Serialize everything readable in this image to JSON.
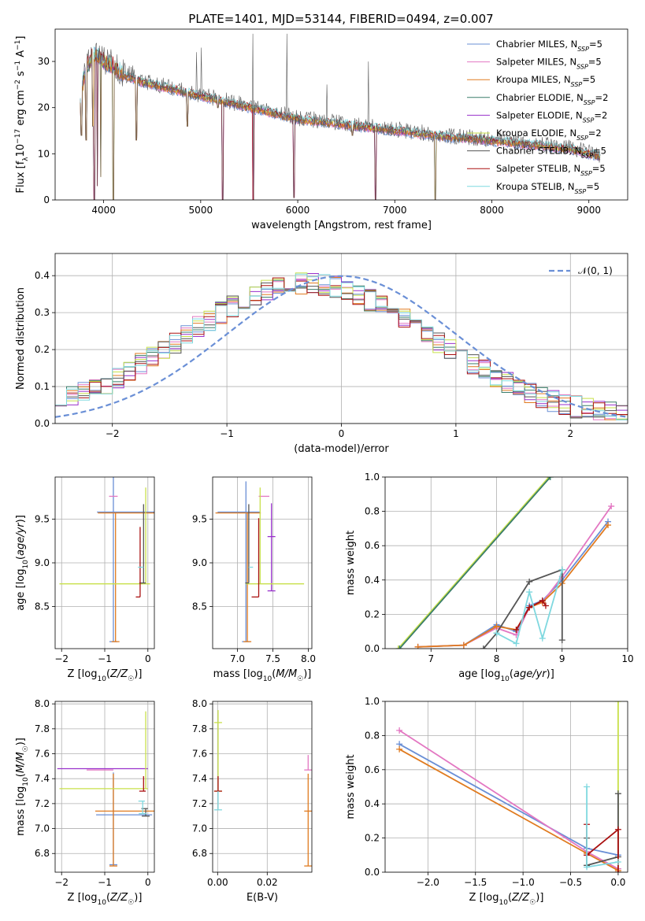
{
  "figure": {
    "title": "PLATE=1401, MJD=53144, FIBERID=0494, z=0.007"
  },
  "models": [
    {
      "name": "Chabrier MILES",
      "nssp": "5",
      "color": "#6a8fd6"
    },
    {
      "name": "Salpeter MILES",
      "nssp": "5",
      "color": "#e377c2"
    },
    {
      "name": "Kroupa MILES",
      "nssp": "5",
      "color": "#e07b20"
    },
    {
      "name": "Chabrier ELODIE",
      "nssp": "2",
      "color": "#3a7d6a"
    },
    {
      "name": "Salpeter ELODIE",
      "nssp": "2",
      "color": "#9932cc"
    },
    {
      "name": "Kroupa ELODIE",
      "nssp": "2",
      "color": "#c8e04a"
    },
    {
      "name": "Chabrier STELIB",
      "nssp": "5",
      "color": "#555555"
    },
    {
      "name": "Salpeter STELIB",
      "nssp": "5",
      "color": "#aa1111"
    },
    {
      "name": "Kroupa STELIB",
      "nssp": "5",
      "color": "#7fd8df"
    }
  ],
  "chart_data": [
    {
      "id": "spectrum",
      "type": "line",
      "xlabel": "wavelength [Angstrom, rest frame]",
      "ylabel": "Flux [f_λ 10^-17 erg cm^-2 s^-1 A^-1]",
      "xlim": [
        3500,
        9400
      ],
      "ylim": [
        0,
        37
      ],
      "xticks": [
        4000,
        5000,
        6000,
        7000,
        8000,
        9000
      ],
      "yticks": [
        0,
        10,
        20,
        30
      ],
      "grid": false,
      "legend": "top-right",
      "continuum": {
        "x": [
          3760,
          3800,
          3850,
          3900,
          3950,
          4000,
          4100,
          4200,
          4400,
          4600,
          4800,
          5000,
          5200,
          5400,
          5600,
          5800,
          6000,
          6200,
          6400,
          6600,
          6800,
          7000,
          7200,
          7400,
          7600,
          7800,
          8000,
          8200,
          8400,
          8600,
          8800,
          9000,
          9100
        ],
        "y": [
          22,
          27,
          30,
          32,
          31,
          30,
          29,
          27,
          25.5,
          24.5,
          23.5,
          22.5,
          21.5,
          20.5,
          19.5,
          18.5,
          17.5,
          17,
          16.5,
          16,
          15.5,
          15,
          14.5,
          14,
          13.5,
          13.2,
          12.8,
          12.4,
          12,
          11.5,
          11,
          10,
          9.5
        ]
      },
      "dips": [
        {
          "x": 3770,
          "y": 14
        },
        {
          "x": 3820,
          "y": 13
        },
        {
          "x": 3890,
          "y": 16
        },
        {
          "x": 3935,
          "y": 3
        },
        {
          "x": 3970,
          "y": 5
        },
        {
          "x": 3905,
          "y": 0
        },
        {
          "x": 4102,
          "y": 0
        },
        {
          "x": 4340,
          "y": 13
        },
        {
          "x": 4861,
          "y": 16
        },
        {
          "x": 5180,
          "y": 20
        },
        {
          "x": 5225,
          "y": 0
        },
        {
          "x": 5540,
          "y": 0
        },
        {
          "x": 5960,
          "y": 0.5
        },
        {
          "x": 6563,
          "y": 14
        },
        {
          "x": 6800,
          "y": 0
        },
        {
          "x": 7420,
          "y": 0
        }
      ],
      "spikes": [
        {
          "x": 4960,
          "y": 32
        },
        {
          "x": 5007,
          "y": 33
        },
        {
          "x": 5538,
          "y": 36
        },
        {
          "x": 5890,
          "y": 36
        },
        {
          "x": 6730,
          "y": 30
        },
        {
          "x": 6300,
          "y": 25
        }
      ]
    },
    {
      "id": "residuals",
      "type": "area",
      "xlabel": "(data-model)/error",
      "ylabel": "Normed distribution",
      "xlim": [
        -2.5,
        2.5
      ],
      "ylim": [
        0,
        0.46
      ],
      "xticks": [
        -2,
        -1,
        0,
        1,
        2
      ],
      "yticks": [
        0.0,
        0.1,
        0.2,
        0.3,
        0.4
      ],
      "grid": true,
      "legend": "top-right",
      "normal_label": "𝒩(0, 1)",
      "normal_color": "#6a8fd6",
      "bin_width": 0.1
    },
    {
      "id": "age-vs-Z",
      "type": "scatter",
      "xlabel": "Z [log10(Z/Z☉)]",
      "ylabel": "age  [log10(age/yr)]",
      "xlim": [
        -2.15,
        0.15
      ],
      "ylim": [
        8.02,
        9.98
      ],
      "xticks": [
        -2,
        -1,
        0
      ],
      "yticks": [
        8.5,
        9.0,
        9.5
      ],
      "grid": true,
      "errorbars": [
        {
          "model": 0,
          "x": -0.8,
          "y": 9.58,
          "xerr": [
            0.38,
            0.98
          ],
          "yerr": [
            1.48,
            0.4
          ]
        },
        {
          "model": 1,
          "x": -0.7,
          "y": 9.76,
          "xerr": [
            0.2,
            0.0
          ],
          "yerr": [
            0.0,
            0.0
          ]
        },
        {
          "model": 2,
          "x": -0.75,
          "y": 9.57,
          "xerr": [
            0.41,
            0.9
          ],
          "yerr": [
            1.47,
            0.0
          ]
        },
        {
          "model": 5,
          "x": -0.05,
          "y": 8.76,
          "xerr": [
            2.0,
            0.1
          ],
          "yerr": [
            0.0,
            1.1
          ]
        },
        {
          "model": 6,
          "x": -0.1,
          "y": 8.77,
          "xerr": [
            0.1,
            0.05
          ],
          "yerr": [
            0.0,
            0.9
          ]
        },
        {
          "model": 7,
          "x": -0.18,
          "y": 8.61,
          "xerr": [
            0.1,
            0.0
          ],
          "yerr": [
            0.0,
            0.8
          ]
        },
        {
          "model": 8,
          "x": -0.15,
          "y": 8.95,
          "xerr": [
            0.08,
            0.05
          ],
          "yerr": [
            0.0,
            0.0
          ]
        }
      ]
    },
    {
      "id": "age-vs-mass",
      "type": "scatter",
      "xlabel": "mass [log10(M/M☉)]",
      "ylabel": "",
      "xlim": [
        6.65,
        8.05
      ],
      "ylim": [
        8.02,
        9.98
      ],
      "xticks": [
        7.0,
        7.5,
        8.0
      ],
      "yticks": [
        8.5,
        9.0,
        9.5
      ],
      "grid": true,
      "errorbars": [
        {
          "model": 0,
          "x": 7.12,
          "y": 9.58,
          "xerr": [
            0.4,
            0.2
          ],
          "yerr": [
            1.48,
            0.35
          ]
        },
        {
          "model": 1,
          "x": 7.45,
          "y": 9.76,
          "xerr": [
            0.15,
            0.0
          ],
          "yerr": [
            0.0,
            0.0
          ]
        },
        {
          "model": 2,
          "x": 7.14,
          "y": 9.57,
          "xerr": [
            0.45,
            0.19
          ],
          "yerr": [
            1.47,
            0.0
          ]
        },
        {
          "model": 4,
          "x": 7.48,
          "y": 9.3,
          "xerr": [
            0.0,
            0.0
          ],
          "yerr": [
            0.62,
            0.38
          ]
        },
        {
          "model": 5,
          "x": 7.32,
          "y": 8.76,
          "xerr": [
            0.2,
            0.62
          ],
          "yerr": [
            0.0,
            1.1
          ]
        },
        {
          "model": 6,
          "x": 7.16,
          "y": 8.77,
          "xerr": [
            0.05,
            0.0
          ],
          "yerr": [
            0.0,
            0.9
          ]
        },
        {
          "model": 7,
          "x": 7.3,
          "y": 8.61,
          "xerr": [
            0.1,
            0.0
          ],
          "yerr": [
            0.0,
            0.9
          ]
        },
        {
          "model": 8,
          "x": 7.22,
          "y": 8.95,
          "xerr": [
            0.06,
            0.0
          ],
          "yerr": [
            0.0,
            0.0
          ]
        }
      ]
    },
    {
      "id": "weight-vs-age",
      "type": "line",
      "xlabel": "age  [log10(age/yr)]",
      "ylabel": "mass weight",
      "xlim": [
        6.3,
        10.0
      ],
      "ylim": [
        0.0,
        1.0
      ],
      "xticks": [
        7,
        8,
        9,
        10
      ],
      "yticks": [
        0.0,
        0.2,
        0.4,
        0.6,
        0.8,
        1.0
      ],
      "grid": true,
      "series": [
        {
          "model": 0,
          "x": [
            6.8,
            7.5,
            8.0,
            8.3,
            8.5,
            8.7,
            9.0,
            9.7
          ],
          "y": [
            0.01,
            0.02,
            0.14,
            0.1,
            0.25,
            0.28,
            0.4,
            0.74
          ]
        },
        {
          "model": 1,
          "x": [
            6.8,
            7.5,
            8.0,
            8.3,
            8.5,
            8.7,
            9.0,
            9.75
          ],
          "y": [
            0.01,
            0.02,
            0.12,
            0.08,
            0.24,
            0.27,
            0.42,
            0.83
          ]
        },
        {
          "model": 2,
          "x": [
            6.8,
            7.5,
            8.0,
            8.3,
            8.5,
            8.7,
            9.0,
            9.7
          ],
          "y": [
            0.01,
            0.02,
            0.13,
            0.11,
            0.24,
            0.27,
            0.38,
            0.72
          ]
        },
        {
          "model": 5,
          "x": [
            6.5,
            8.8
          ],
          "y": [
            0.0,
            1.0
          ]
        },
        {
          "model": 3,
          "x": [
            6.52,
            8.82
          ],
          "y": [
            0.0,
            1.0
          ]
        },
        {
          "model": 6,
          "x": [
            7.8,
            8.0,
            8.5,
            9.0,
            9.0
          ],
          "y": [
            0.0,
            0.09,
            0.39,
            0.46,
            0.05
          ]
        },
        {
          "model": 7,
          "x": [
            8.3,
            8.5,
            8.7,
            8.75
          ],
          "y": [
            0.11,
            0.24,
            0.28,
            0.25
          ]
        },
        {
          "model": 8,
          "x": [
            8.0,
            8.3,
            8.5,
            8.7,
            9.0
          ],
          "y": [
            0.09,
            0.03,
            0.33,
            0.06,
            0.46
          ]
        }
      ]
    },
    {
      "id": "mass-vs-Z",
      "type": "scatter",
      "xlabel": "Z [log10(Z/Z☉)]",
      "ylabel": "mass [log10(M/M☉)]",
      "xlim": [
        -2.15,
        0.15
      ],
      "ylim": [
        6.65,
        8.02
      ],
      "xticks": [
        -2,
        -1,
        0
      ],
      "yticks": [
        6.8,
        7.0,
        7.2,
        7.4,
        7.6,
        7.8,
        8.0
      ],
      "grid": true,
      "errorbars": [
        {
          "model": 0,
          "x": -0.8,
          "y": 7.11,
          "xerr": [
            0.4,
            0.9
          ],
          "yerr": [
            0.4,
            0.34
          ]
        },
        {
          "model": 1,
          "x": -0.8,
          "y": 7.47,
          "xerr": [
            0.62,
            0.0
          ],
          "yerr": [
            0.0,
            0.0
          ]
        },
        {
          "model": 2,
          "x": -0.8,
          "y": 7.14,
          "xerr": [
            0.42,
            0.95
          ],
          "yerr": [
            0.44,
            0.3
          ]
        },
        {
          "model": 4,
          "x": -0.6,
          "y": 7.48,
          "xerr": [
            1.5,
            0.6
          ],
          "yerr": [
            0.0,
            0.0
          ]
        },
        {
          "model": 5,
          "x": -0.05,
          "y": 7.32,
          "xerr": [
            2.0,
            0.05
          ],
          "yerr": [
            0.0,
            0.62
          ]
        },
        {
          "model": 6,
          "x": -0.05,
          "y": 7.16,
          "xerr": [
            0.1,
            0.05
          ],
          "yerr": [
            0.06,
            0.0
          ]
        },
        {
          "model": 7,
          "x": -0.1,
          "y": 7.3,
          "xerr": [
            0.1,
            0.05
          ],
          "yerr": [
            0.0,
            0.12
          ]
        },
        {
          "model": 8,
          "x": -0.12,
          "y": 7.22,
          "xerr": [
            0.1,
            0.05
          ],
          "yerr": [
            0.1,
            0.0
          ]
        }
      ]
    },
    {
      "id": "mass-vs-ebv",
      "type": "scatter",
      "xlabel": "E(B-V)",
      "ylabel": "",
      "xlim": [
        -0.002,
        0.038
      ],
      "ylim": [
        6.65,
        8.02
      ],
      "xticks": [
        0.0,
        0.02
      ],
      "yticks": [
        6.8,
        7.0,
        7.2,
        7.4,
        7.6,
        7.8,
        8.0
      ],
      "grid": true,
      "errorbars": [
        {
          "model": 1,
          "x": 0.0365,
          "y": 7.47,
          "xerr": [
            0.0,
            0.0
          ],
          "yerr": [
            0.0,
            0.12
          ]
        },
        {
          "model": 2,
          "x": 0.0365,
          "y": 7.14,
          "xerr": [
            0.0,
            0.0
          ],
          "yerr": [
            0.44,
            0.3
          ]
        },
        {
          "model": 5,
          "x": 0.0002,
          "y": 7.85,
          "xerr": [
            0.0,
            0.0
          ],
          "yerr": [
            0.55,
            0.1
          ]
        },
        {
          "model": 7,
          "x": 0.0002,
          "y": 7.3,
          "xerr": [
            0.0,
            0.0
          ],
          "yerr": [
            0.0,
            0.12
          ]
        },
        {
          "model": 8,
          "x": 0.0002,
          "y": 7.15,
          "xerr": [
            0.0,
            0.0
          ],
          "yerr": [
            0.0,
            0.15
          ]
        }
      ]
    },
    {
      "id": "weight-vs-Z",
      "type": "line",
      "xlabel": "Z [log10(Z/Z☉)]",
      "ylabel": "mass weight",
      "xlim": [
        -2.45,
        0.1
      ],
      "ylim": [
        0.0,
        1.0
      ],
      "xticks": [
        -2.0,
        -1.5,
        -1.0,
        -0.5,
        0.0
      ],
      "yticks": [
        0.0,
        0.2,
        0.4,
        0.6,
        0.8,
        1.0
      ],
      "grid": true,
      "series": [
        {
          "model": 0,
          "x": [
            -2.3,
            -0.33,
            0.0
          ],
          "y": [
            0.75,
            0.14,
            0.1
          ]
        },
        {
          "model": 1,
          "x": [
            -2.3,
            -0.33,
            0.0
          ],
          "y": [
            0.83,
            0.12,
            0.02
          ]
        },
        {
          "model": 2,
          "x": [
            -2.3,
            -0.33,
            0.0
          ],
          "y": [
            0.72,
            0.11,
            0.01
          ]
        },
        {
          "model": 5,
          "x": [
            0.0,
            0.0
          ],
          "y": [
            0.0,
            1.0
          ]
        },
        {
          "model": 6,
          "x": [
            -0.33,
            -0.33,
            0.0,
            0.0
          ],
          "y": [
            0.2,
            0.04,
            0.09,
            0.46
          ]
        },
        {
          "model": 7,
          "x": [
            -0.33,
            -0.33,
            0.0,
            0.0
          ],
          "y": [
            0.28,
            0.1,
            0.25,
            0.0
          ]
        },
        {
          "model": 8,
          "x": [
            -0.33,
            -0.33,
            0.0
          ],
          "y": [
            0.5,
            0.03,
            0.06
          ]
        }
      ]
    }
  ]
}
